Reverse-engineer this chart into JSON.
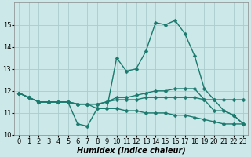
{
  "xlabel": "Humidex (Indice chaleur)",
  "xlim": [
    -0.5,
    23.5
  ],
  "ylim": [
    10,
    16
  ],
  "yticks": [
    10,
    11,
    12,
    13,
    14,
    15
  ],
  "xticks": [
    0,
    1,
    2,
    3,
    4,
    5,
    6,
    7,
    8,
    9,
    10,
    11,
    12,
    13,
    14,
    15,
    16,
    17,
    18,
    19,
    20,
    21,
    22,
    23
  ],
  "background_color": "#cce8e8",
  "grid_color": "#aacccc",
  "line_color": "#1a7a6e",
  "lines": [
    {
      "x": [
        0,
        1,
        2,
        3,
        4,
        5,
        6,
        7,
        8,
        9,
        10,
        11,
        12,
        13,
        14,
        15,
        16,
        17,
        18,
        19,
        20,
        21,
        22,
        23
      ],
      "y": [
        11.9,
        11.7,
        11.5,
        11.5,
        11.5,
        11.5,
        10.5,
        10.4,
        11.2,
        11.2,
        13.5,
        12.9,
        13.0,
        13.8,
        15.1,
        15.0,
        15.2,
        14.6,
        13.6,
        12.1,
        11.6,
        11.1,
        10.9,
        10.5
      ]
    },
    {
      "x": [
        0,
        1,
        2,
        3,
        4,
        5,
        6,
        7,
        8,
        9,
        10,
        11,
        12,
        13,
        14,
        15,
        16,
        17,
        18,
        19,
        20,
        21,
        22,
        23
      ],
      "y": [
        11.9,
        11.7,
        11.5,
        11.5,
        11.5,
        11.5,
        11.4,
        11.4,
        11.4,
        11.5,
        11.7,
        11.7,
        11.8,
        11.9,
        12.0,
        12.0,
        12.1,
        12.1,
        12.1,
        11.6,
        11.6,
        11.6,
        11.6,
        11.6
      ]
    },
    {
      "x": [
        0,
        1,
        2,
        3,
        4,
        5,
        6,
        7,
        8,
        9,
        10,
        11,
        12,
        13,
        14,
        15,
        16,
        17,
        18,
        19,
        20,
        21,
        22,
        23
      ],
      "y": [
        11.9,
        11.7,
        11.5,
        11.5,
        11.5,
        11.5,
        11.4,
        11.4,
        11.4,
        11.5,
        11.6,
        11.6,
        11.6,
        11.7,
        11.7,
        11.7,
        11.7,
        11.7,
        11.7,
        11.6,
        11.1,
        11.1,
        10.9,
        10.5
      ]
    },
    {
      "x": [
        0,
        1,
        2,
        3,
        4,
        5,
        6,
        7,
        8,
        9,
        10,
        11,
        12,
        13,
        14,
        15,
        16,
        17,
        18,
        19,
        20,
        21,
        22,
        23
      ],
      "y": [
        11.9,
        11.7,
        11.5,
        11.5,
        11.5,
        11.5,
        11.4,
        11.4,
        11.2,
        11.2,
        11.2,
        11.1,
        11.1,
        11.0,
        11.0,
        11.0,
        10.9,
        10.9,
        10.8,
        10.7,
        10.6,
        10.5,
        10.5,
        10.5
      ]
    }
  ],
  "markersize": 2.5,
  "linewidth": 1.0,
  "tick_fontsize": 6,
  "label_fontsize": 7
}
